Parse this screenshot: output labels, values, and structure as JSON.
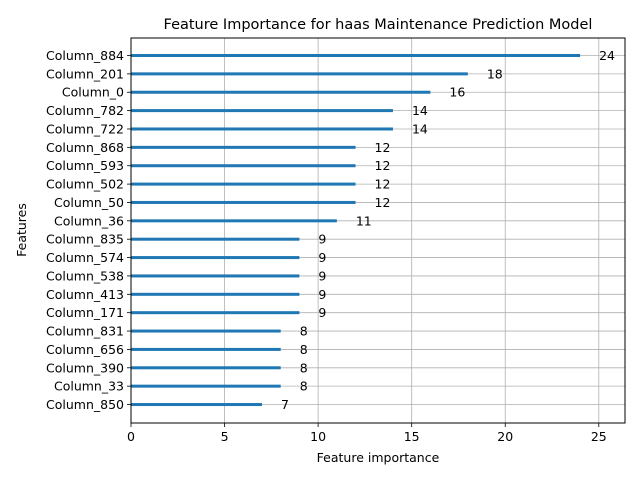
{
  "chart_data": {
    "type": "bar",
    "orientation": "horizontal",
    "title": "Feature Importance for haas Maintenance Prediction Model",
    "xlabel": "Feature importance",
    "ylabel": "Features",
    "xlim": [
      0,
      26.4
    ],
    "xticks": [
      0,
      5,
      10,
      15,
      20,
      25
    ],
    "grid": true,
    "bar_color": "#1f77b4",
    "grid_color": "#b0b0b0",
    "categories": [
      "Column_884",
      "Column_201",
      "Column_0",
      "Column_782",
      "Column_722",
      "Column_868",
      "Column_593",
      "Column_502",
      "Column_50",
      "Column_36",
      "Column_835",
      "Column_574",
      "Column_538",
      "Column_413",
      "Column_171",
      "Column_831",
      "Column_656",
      "Column_390",
      "Column_33",
      "Column_850"
    ],
    "values": [
      24,
      18,
      16,
      14,
      14,
      12,
      12,
      12,
      12,
      11,
      9,
      9,
      9,
      9,
      9,
      8,
      8,
      8,
      8,
      7
    ]
  }
}
